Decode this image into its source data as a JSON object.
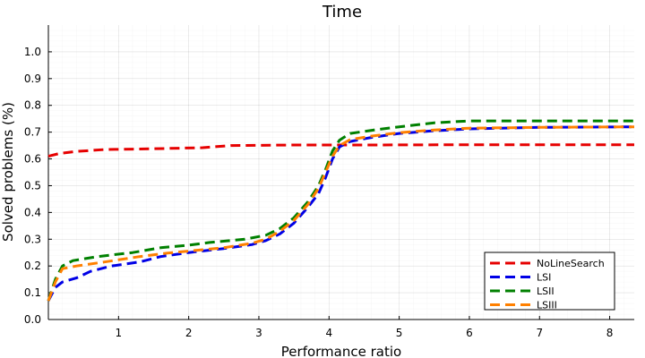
{
  "chart_data": {
    "type": "line",
    "title": "Time",
    "xlabel": "Performance ratio",
    "ylabel": "Solved problems (%)",
    "xlim": [
      0,
      8.35
    ],
    "ylim": [
      0,
      1.1
    ],
    "xticks": [
      1,
      2,
      3,
      4,
      5,
      6,
      7,
      8
    ],
    "yticks": [
      0.0,
      0.1,
      0.2,
      0.3,
      0.4,
      0.5,
      0.6,
      0.7,
      0.8,
      0.9,
      1.0
    ],
    "grid": true,
    "legend_position": "bottom-right",
    "line_style": "dashed",
    "series": [
      {
        "name": "NoLineSearch",
        "color": "#e60000",
        "points": [
          [
            0.0,
            0.61
          ],
          [
            0.15,
            0.62
          ],
          [
            0.4,
            0.628
          ],
          [
            0.8,
            0.635
          ],
          [
            1.5,
            0.638
          ],
          [
            2.2,
            0.642
          ],
          [
            2.6,
            0.65
          ],
          [
            3.5,
            0.652
          ],
          [
            4.5,
            0.652
          ],
          [
            6.0,
            0.653
          ],
          [
            8.35,
            0.653
          ]
        ]
      },
      {
        "name": "LSI",
        "color": "#0000e6",
        "points": [
          [
            0.0,
            0.07
          ],
          [
            0.1,
            0.12
          ],
          [
            0.2,
            0.14
          ],
          [
            0.4,
            0.155
          ],
          [
            0.6,
            0.18
          ],
          [
            0.9,
            0.2
          ],
          [
            1.3,
            0.215
          ],
          [
            1.6,
            0.235
          ],
          [
            2.0,
            0.25
          ],
          [
            2.5,
            0.265
          ],
          [
            2.9,
            0.28
          ],
          [
            3.1,
            0.295
          ],
          [
            3.3,
            0.32
          ],
          [
            3.5,
            0.36
          ],
          [
            3.7,
            0.42
          ],
          [
            3.85,
            0.47
          ],
          [
            3.95,
            0.53
          ],
          [
            4.05,
            0.6
          ],
          [
            4.15,
            0.645
          ],
          [
            4.3,
            0.665
          ],
          [
            4.6,
            0.68
          ],
          [
            5.0,
            0.695
          ],
          [
            5.5,
            0.705
          ],
          [
            6.0,
            0.712
          ],
          [
            7.0,
            0.718
          ],
          [
            8.35,
            0.72
          ]
        ]
      },
      {
        "name": "LSII",
        "color": "#008000",
        "points": [
          [
            0.0,
            0.07
          ],
          [
            0.1,
            0.15
          ],
          [
            0.2,
            0.2
          ],
          [
            0.35,
            0.22
          ],
          [
            0.7,
            0.235
          ],
          [
            1.2,
            0.25
          ],
          [
            1.6,
            0.268
          ],
          [
            2.0,
            0.278
          ],
          [
            2.3,
            0.288
          ],
          [
            2.8,
            0.3
          ],
          [
            3.1,
            0.315
          ],
          [
            3.3,
            0.34
          ],
          [
            3.5,
            0.38
          ],
          [
            3.7,
            0.44
          ],
          [
            3.85,
            0.5
          ],
          [
            3.95,
            0.56
          ],
          [
            4.05,
            0.63
          ],
          [
            4.15,
            0.67
          ],
          [
            4.3,
            0.695
          ],
          [
            4.7,
            0.71
          ],
          [
            5.0,
            0.72
          ],
          [
            5.5,
            0.735
          ],
          [
            6.0,
            0.742
          ],
          [
            7.0,
            0.742
          ],
          [
            8.35,
            0.742
          ]
        ]
      },
      {
        "name": "LSIII",
        "color": "#ff8000",
        "points": [
          [
            0.0,
            0.07
          ],
          [
            0.1,
            0.14
          ],
          [
            0.2,
            0.19
          ],
          [
            0.4,
            0.2
          ],
          [
            0.8,
            0.215
          ],
          [
            1.3,
            0.235
          ],
          [
            1.7,
            0.248
          ],
          [
            2.1,
            0.258
          ],
          [
            2.5,
            0.268
          ],
          [
            2.9,
            0.285
          ],
          [
            3.1,
            0.3
          ],
          [
            3.3,
            0.33
          ],
          [
            3.5,
            0.37
          ],
          [
            3.7,
            0.43
          ],
          [
            3.85,
            0.49
          ],
          [
            3.95,
            0.55
          ],
          [
            4.05,
            0.61
          ],
          [
            4.15,
            0.65
          ],
          [
            4.3,
            0.672
          ],
          [
            4.6,
            0.685
          ],
          [
            5.0,
            0.698
          ],
          [
            5.5,
            0.708
          ],
          [
            6.0,
            0.715
          ],
          [
            7.0,
            0.718
          ],
          [
            8.35,
            0.72
          ]
        ]
      }
    ]
  }
}
